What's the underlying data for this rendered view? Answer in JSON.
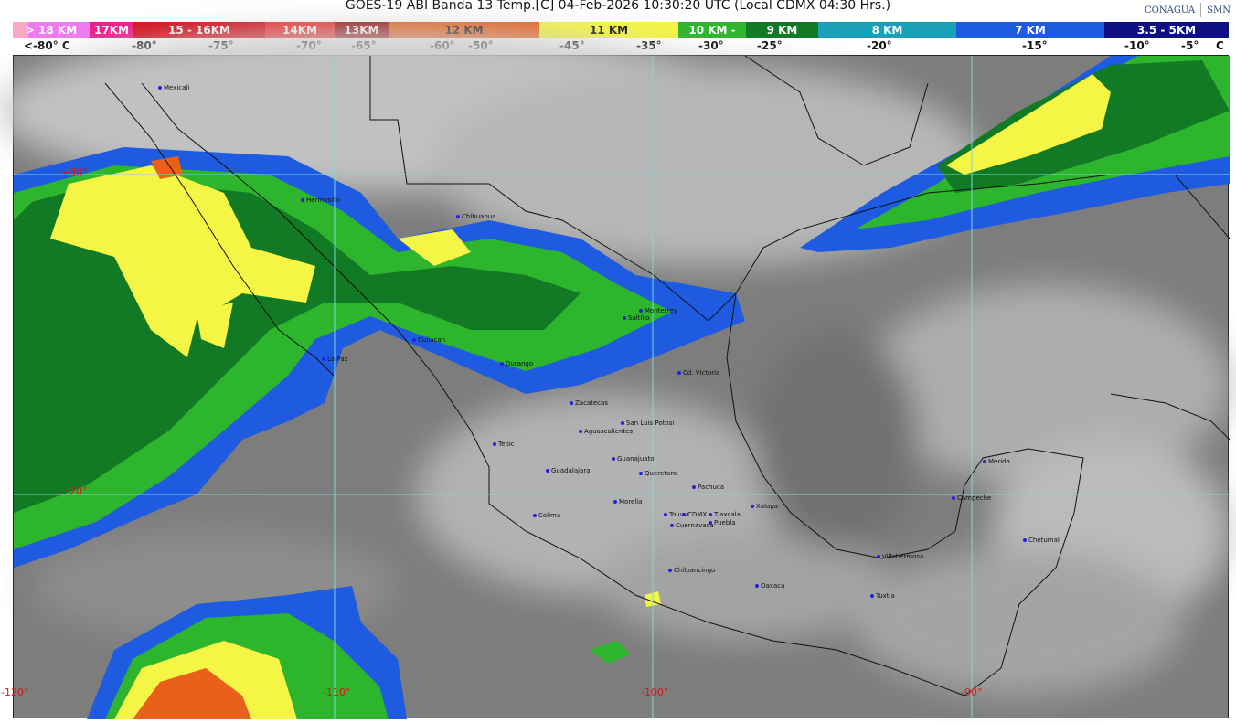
{
  "header": {
    "title": "GOES-19 ABI Banda 13 Temp.[C] 04-Feb-2026 10:30:20 UTC (Local CDMX  04:30 Hrs.)",
    "logos": [
      "CONAGUA",
      "SMN"
    ]
  },
  "colorbar": {
    "segments": [
      {
        "label": "> 18 KM",
        "color": "#f07af0"
      },
      {
        "label": "17KM",
        "color": "#ec1c8c"
      },
      {
        "label": "15 - 16KM",
        "color": "#d40f1a"
      },
      {
        "label": "14KM",
        "color": "#ee2b2b"
      },
      {
        "label": "13KM",
        "color": "#9a0e0e"
      },
      {
        "label": "12 KM",
        "color": "#e8601a"
      },
      {
        "label": "11 KM",
        "color": "#f5f545"
      },
      {
        "label": "10 KM -",
        "color": "#2db52d"
      },
      {
        "label": "9 KM",
        "color": "#127a24"
      },
      {
        "label": "8 KM",
        "color": "#1aa0b8"
      },
      {
        "label": "7 KM",
        "color": "#1e5be0"
      },
      {
        "label": "3.5 - 5KM",
        "color": "#0c1082"
      }
    ],
    "temperatures": [
      "<-80° C",
      "-80°",
      "-75°",
      "-70°",
      "-65°",
      "-60°",
      "-50°",
      "-45°",
      "-35°",
      "-30°",
      "-25°",
      "-20°",
      "-15°",
      "-10°",
      "-5°",
      "C"
    ]
  },
  "map": {
    "latitude_labels": [
      "+30°",
      "+20°"
    ],
    "longitude_labels": [
      "-120°",
      "-110°",
      "-100°",
      "-90°"
    ],
    "cities": [
      "Mexicali",
      "Hermosillo",
      "Chihuahua",
      "Monterrey",
      "Saltillo",
      "Culiacan",
      "La Paz",
      "Durango",
      "Cd. Victoria",
      "Zacatecas",
      "San Luis Potosí",
      "Aguascalientes",
      "Tepic",
      "Guanajuato",
      "Guadalajara",
      "Queretaro",
      "Pachuca",
      "Morelia",
      "Colima",
      "Toluca",
      "CDMX",
      "Tlaxcala",
      "Puebla",
      "Xalapa",
      "Cuernavaca",
      "Chilpancingo",
      "Oaxaca",
      "Villahermosa",
      "Tuxtla",
      "Merida",
      "Campeche",
      "Chetumal"
    ]
  }
}
